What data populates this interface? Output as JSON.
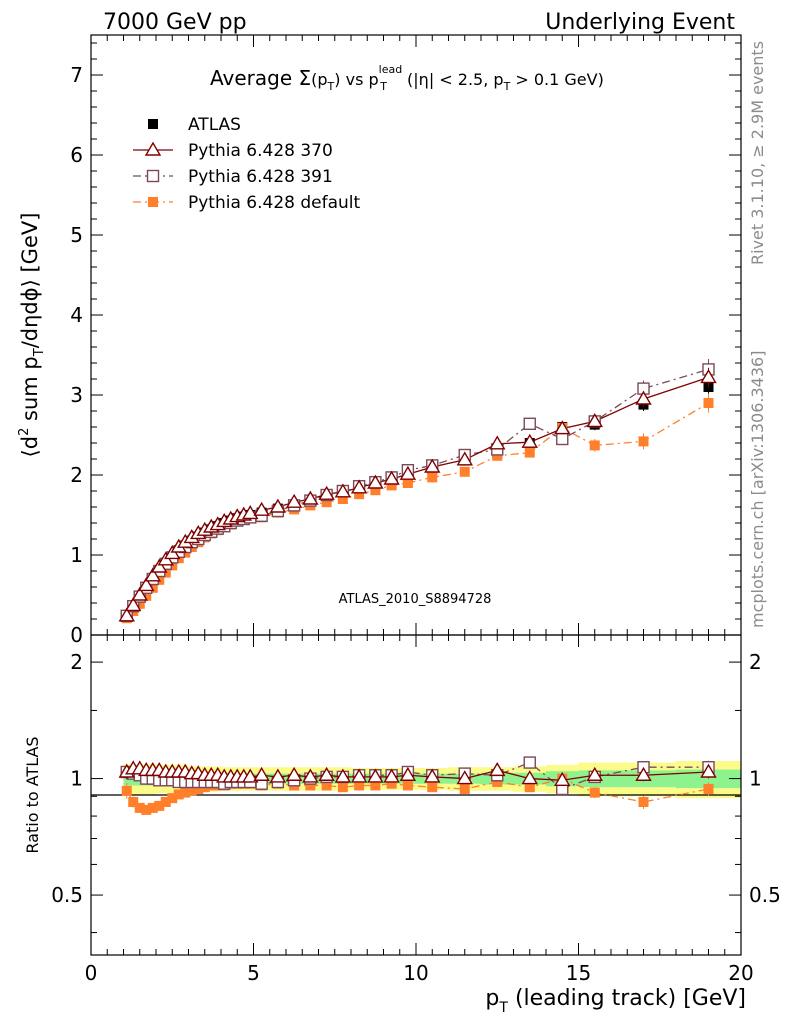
{
  "header": {
    "left": "7000 GeV pp",
    "right": "Underlying Event"
  },
  "side_labels": {
    "rivet": "Rivet 3.1.10, ≥ 2.9M events",
    "mcplots": "mcplots.cern.ch [arXiv:1306.3436]"
  },
  "chart_data": [
    {
      "type": "scatter",
      "panel": "main",
      "title": {
        "prefix": "Average ",
        "sigma": "Σ",
        "arg_open": "(p",
        "arg_sub": "T",
        "arg_close": ")",
        "vs": " vs p",
        "vs_sup": "lead",
        "vs_sub": "T",
        "cut1": " (|η| < 2.5, p",
        "cut_sub": "T",
        "cut2": " > 0.1 GeV)"
      },
      "ylabel": {
        "open": "⟨d",
        "sup2": "2",
        "mid": " sum p",
        "sub": "T",
        "close": "/dηdϕ⟩ [GeV]"
      },
      "watermark": "ATLAS_2010_S8894728",
      "xlim": [
        0,
        20
      ],
      "ylim": [
        0,
        7.5
      ],
      "yticks": [
        0,
        1,
        2,
        3,
        4,
        5,
        6,
        7
      ],
      "ytick_labels": [
        "0",
        "1",
        "2",
        "3",
        "4",
        "5",
        "6",
        "7"
      ],
      "legend_position": "top-left",
      "x": [
        1.1,
        1.3,
        1.5,
        1.7,
        1.9,
        2.1,
        2.3,
        2.5,
        2.7,
        2.9,
        3.1,
        3.3,
        3.5,
        3.7,
        3.9,
        4.1,
        4.3,
        4.5,
        4.7,
        4.9,
        5.25,
        5.75,
        6.25,
        6.75,
        7.25,
        7.75,
        8.25,
        8.75,
        9.25,
        9.75,
        10.5,
        11.5,
        12.5,
        13.5,
        14.5,
        15.5,
        17.0,
        19.0
      ],
      "series": [
        {
          "name": "ATLAS",
          "color": "#000000",
          "marker": "filled-square",
          "line": "none",
          "values": [
            0.23,
            0.35,
            0.47,
            0.59,
            0.7,
            0.81,
            0.9,
            0.98,
            1.06,
            1.12,
            1.18,
            1.23,
            1.28,
            1.32,
            1.36,
            1.4,
            1.43,
            1.46,
            1.48,
            1.5,
            1.53,
            1.58,
            1.63,
            1.68,
            1.73,
            1.78,
            1.83,
            1.88,
            1.93,
            1.98,
            2.07,
            2.18,
            2.27,
            2.4,
            2.6,
            2.63,
            2.88,
            3.1
          ],
          "errors": [
            0.01,
            0.01,
            0.01,
            0.01,
            0.01,
            0.01,
            0.01,
            0.01,
            0.01,
            0.01,
            0.01,
            0.01,
            0.01,
            0.01,
            0.01,
            0.01,
            0.01,
            0.01,
            0.01,
            0.01,
            0.02,
            0.02,
            0.02,
            0.02,
            0.02,
            0.02,
            0.02,
            0.02,
            0.03,
            0.03,
            0.03,
            0.04,
            0.04,
            0.05,
            0.06,
            0.07,
            0.08,
            0.1
          ]
        },
        {
          "name": "Pythia 6.428 370",
          "color": "#800000",
          "marker": "open-triangle",
          "line": "solid",
          "values": [
            0.24,
            0.37,
            0.5,
            0.62,
            0.74,
            0.85,
            0.94,
            1.02,
            1.1,
            1.16,
            1.22,
            1.27,
            1.31,
            1.35,
            1.38,
            1.42,
            1.45,
            1.48,
            1.5,
            1.52,
            1.56,
            1.6,
            1.66,
            1.7,
            1.76,
            1.79,
            1.84,
            1.9,
            1.95,
            2.01,
            2.1,
            2.19,
            2.39,
            2.41,
            2.58,
            2.67,
            2.95,
            3.22
          ],
          "errors": [
            0.01,
            0.01,
            0.01,
            0.01,
            0.01,
            0.01,
            0.01,
            0.01,
            0.01,
            0.01,
            0.01,
            0.01,
            0.01,
            0.01,
            0.01,
            0.01,
            0.01,
            0.01,
            0.01,
            0.01,
            0.02,
            0.02,
            0.02,
            0.02,
            0.02,
            0.02,
            0.02,
            0.02,
            0.03,
            0.03,
            0.03,
            0.04,
            0.05,
            0.06,
            0.07,
            0.08,
            0.1,
            0.12
          ],
          "ratio": [
            1.04,
            1.06,
            1.06,
            1.05,
            1.05,
            1.05,
            1.04,
            1.04,
            1.04,
            1.04,
            1.03,
            1.03,
            1.02,
            1.02,
            1.02,
            1.01,
            1.01,
            1.01,
            1.01,
            1.01,
            1.02,
            1.01,
            1.02,
            1.01,
            1.02,
            1.01,
            1.01,
            1.01,
            1.01,
            1.02,
            1.01,
            1.0,
            1.05,
            1.0,
            0.99,
            1.02,
            1.02,
            1.04
          ]
        },
        {
          "name": "Pythia 6.428 391",
          "color": "#7b4a5a",
          "marker": "open-square",
          "line": "dash-dot",
          "values": [
            0.24,
            0.36,
            0.48,
            0.59,
            0.7,
            0.8,
            0.89,
            0.97,
            1.04,
            1.1,
            1.16,
            1.2,
            1.25,
            1.29,
            1.33,
            1.36,
            1.4,
            1.43,
            1.45,
            1.47,
            1.49,
            1.55,
            1.62,
            1.68,
            1.75,
            1.8,
            1.86,
            1.91,
            1.97,
            2.06,
            2.12,
            2.25,
            2.32,
            2.64,
            2.45,
            2.67,
            3.08,
            3.32
          ],
          "errors": [
            0.01,
            0.01,
            0.01,
            0.01,
            0.01,
            0.01,
            0.01,
            0.01,
            0.01,
            0.01,
            0.01,
            0.01,
            0.01,
            0.01,
            0.01,
            0.01,
            0.01,
            0.01,
            0.01,
            0.01,
            0.02,
            0.02,
            0.02,
            0.02,
            0.02,
            0.02,
            0.02,
            0.02,
            0.03,
            0.03,
            0.03,
            0.04,
            0.05,
            0.06,
            0.07,
            0.08,
            0.1,
            0.13
          ],
          "ratio": [
            1.04,
            1.03,
            1.02,
            1.0,
            1.0,
            0.99,
            0.99,
            0.99,
            0.98,
            0.98,
            0.98,
            0.98,
            0.98,
            0.98,
            0.98,
            0.97,
            0.98,
            0.98,
            0.98,
            0.98,
            0.97,
            0.98,
            0.99,
            1.0,
            1.01,
            1.01,
            1.02,
            1.02,
            1.02,
            1.04,
            1.02,
            1.03,
            1.02,
            1.1,
            0.94,
            1.01,
            1.07,
            1.07
          ]
        },
        {
          "name": "Pythia 6.428 default",
          "color": "#ff7f2a",
          "marker": "filled-square",
          "line": "dash-dot",
          "values": [
            0.21,
            0.3,
            0.39,
            0.49,
            0.59,
            0.69,
            0.78,
            0.87,
            0.96,
            1.03,
            1.1,
            1.16,
            1.22,
            1.27,
            1.31,
            1.35,
            1.38,
            1.42,
            1.44,
            1.46,
            1.47,
            1.53,
            1.57,
            1.62,
            1.66,
            1.7,
            1.76,
            1.81,
            1.87,
            1.9,
            1.97,
            2.04,
            2.24,
            2.28,
            2.59,
            2.37,
            2.42,
            2.9
          ],
          "errors": [
            0.01,
            0.01,
            0.01,
            0.01,
            0.01,
            0.01,
            0.01,
            0.01,
            0.01,
            0.01,
            0.01,
            0.01,
            0.01,
            0.01,
            0.01,
            0.01,
            0.01,
            0.01,
            0.01,
            0.01,
            0.02,
            0.02,
            0.02,
            0.02,
            0.02,
            0.02,
            0.02,
            0.02,
            0.03,
            0.03,
            0.03,
            0.04,
            0.05,
            0.06,
            0.07,
            0.08,
            0.1,
            0.12
          ],
          "ratio": [
            0.93,
            0.87,
            0.84,
            0.83,
            0.84,
            0.85,
            0.87,
            0.89,
            0.91,
            0.92,
            0.93,
            0.94,
            0.95,
            0.96,
            0.96,
            0.96,
            0.97,
            0.97,
            0.97,
            0.97,
            0.96,
            0.97,
            0.96,
            0.96,
            0.96,
            0.95,
            0.96,
            0.96,
            0.97,
            0.96,
            0.95,
            0.94,
            0.98,
            0.95,
            1.0,
            0.92,
            0.87,
            0.94
          ]
        }
      ]
    },
    {
      "type": "scatter",
      "panel": "ratio",
      "ylabel": "Ratio to ATLAS",
      "xlabel": {
        "p": "p",
        "sub": "T",
        "rest": " (leading track) [GeV]"
      },
      "xlim": [
        0,
        20
      ],
      "ylim": [
        0.35,
        2.35
      ],
      "xticks": [
        0,
        5,
        10,
        15,
        20
      ],
      "xtick_labels": [
        "0",
        "5",
        "10",
        "15",
        "20"
      ],
      "yticks": [
        0.5,
        1,
        2
      ],
      "ytick_labels": [
        "0.5",
        "1",
        "2"
      ],
      "reference_line": 1,
      "band_colors": {
        "inner": "#8ef28e",
        "outer": "#fbfb8a"
      },
      "band_x_edges": [
        1.0,
        2.0,
        3.0,
        4.0,
        5.0,
        6.0,
        7.0,
        8.0,
        9.0,
        10.0,
        11.0,
        12.0,
        13.0,
        14.0,
        15.0,
        16.0,
        18.0,
        20.0
      ],
      "band_inner": [
        0.04,
        0.035,
        0.03,
        0.03,
        0.03,
        0.03,
        0.03,
        0.03,
        0.03,
        0.03,
        0.03,
        0.035,
        0.035,
        0.045,
        0.05,
        0.05,
        0.055
      ],
      "band_outer": [
        0.09,
        0.085,
        0.075,
        0.07,
        0.07,
        0.07,
        0.07,
        0.065,
        0.065,
        0.065,
        0.07,
        0.07,
        0.075,
        0.085,
        0.1,
        0.1,
        0.11
      ]
    }
  ]
}
